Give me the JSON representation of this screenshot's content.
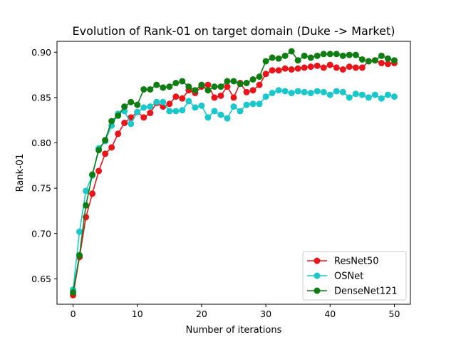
{
  "chart_data": {
    "type": "line",
    "title": "Evolution of Rank-01 on target domain (Duke -> Market)",
    "xlabel": "Number of iterations",
    "ylabel": "Rank-01",
    "xlim": [
      -2.5,
      52.5
    ],
    "ylim": [
      0.622,
      0.912
    ],
    "xticks": [
      0,
      10,
      20,
      30,
      40,
      50
    ],
    "xtick_labels": [
      "0",
      "10",
      "20",
      "30",
      "40",
      "50"
    ],
    "yticks": [
      0.65,
      0.7,
      0.75,
      0.8,
      0.85,
      0.9
    ],
    "ytick_labels": [
      "0.65",
      "0.70",
      "0.75",
      "0.80",
      "0.85",
      "0.90"
    ],
    "grid": false,
    "legend_position": "lower-right",
    "x": [
      0,
      1,
      2,
      3,
      4,
      5,
      6,
      7,
      8,
      9,
      10,
      11,
      12,
      13,
      14,
      15,
      16,
      17,
      18,
      19,
      20,
      21,
      22,
      23,
      24,
      25,
      26,
      27,
      28,
      29,
      30,
      31,
      32,
      33,
      34,
      35,
      36,
      37,
      38,
      39,
      40,
      41,
      42,
      43,
      44,
      45,
      46,
      47,
      48,
      49,
      50
    ],
    "series": [
      {
        "name": "ResNet50",
        "color": "#e8161b",
        "values": [
          0.632,
          0.674,
          0.718,
          0.744,
          0.769,
          0.788,
          0.795,
          0.81,
          0.822,
          0.828,
          0.834,
          0.828,
          0.833,
          0.844,
          0.84,
          0.843,
          0.851,
          0.849,
          0.858,
          0.855,
          0.862,
          0.864,
          0.85,
          0.852,
          0.862,
          0.85,
          0.866,
          0.856,
          0.858,
          0.864,
          0.876,
          0.88,
          0.88,
          0.882,
          0.881,
          0.882,
          0.883,
          0.884,
          0.885,
          0.883,
          0.886,
          0.883,
          0.881,
          0.884,
          0.883,
          0.883,
          0.89,
          0.891,
          0.888,
          0.887,
          0.888
        ]
      },
      {
        "name": "OSNet",
        "color": "#1ac8cc",
        "values": [
          0.638,
          0.702,
          0.747,
          0.764,
          0.794,
          0.802,
          0.819,
          0.832,
          0.835,
          0.821,
          0.834,
          0.839,
          0.84,
          0.845,
          0.845,
          0.835,
          0.835,
          0.836,
          0.846,
          0.839,
          0.841,
          0.828,
          0.835,
          0.831,
          0.827,
          0.84,
          0.835,
          0.842,
          0.843,
          0.843,
          0.851,
          0.855,
          0.858,
          0.857,
          0.855,
          0.857,
          0.856,
          0.855,
          0.857,
          0.856,
          0.853,
          0.857,
          0.856,
          0.85,
          0.854,
          0.853,
          0.85,
          0.853,
          0.849,
          0.853,
          0.851
        ]
      },
      {
        "name": "DenseNet121",
        "color": "#0f7d12",
        "values": [
          0.635,
          0.676,
          0.731,
          0.765,
          0.792,
          0.803,
          0.824,
          0.83,
          0.84,
          0.845,
          0.842,
          0.859,
          0.859,
          0.864,
          0.861,
          0.862,
          0.866,
          0.868,
          0.862,
          0.858,
          0.864,
          0.858,
          0.862,
          0.862,
          0.868,
          0.868,
          0.865,
          0.866,
          0.87,
          0.873,
          0.89,
          0.894,
          0.893,
          0.896,
          0.901,
          0.891,
          0.896,
          0.894,
          0.896,
          0.898,
          0.898,
          0.898,
          0.896,
          0.897,
          0.897,
          0.892,
          0.89,
          0.891,
          0.896,
          0.893,
          0.891
        ]
      }
    ]
  }
}
